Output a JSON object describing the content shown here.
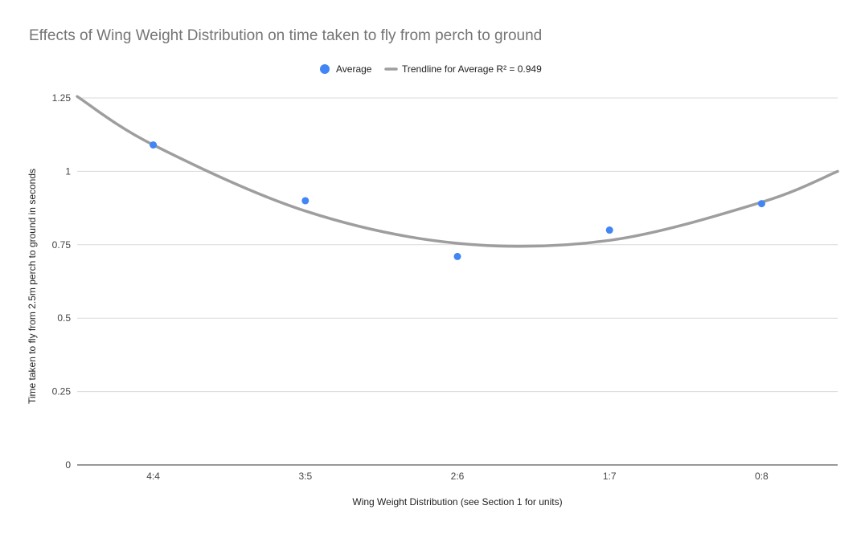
{
  "chart_data": {
    "type": "scatter",
    "title": "Effects of Wing Weight Distribution on time taken to fly from perch to ground",
    "xlabel": "Wing Weight Distribution (see Section 1 for units)",
    "ylabel": "Time taken to fly from 2.5m perch to ground in seconds",
    "categories": [
      "4:4",
      "3:5",
      "2:6",
      "1:7",
      "0:8"
    ],
    "ylim": [
      0,
      1.25
    ],
    "yticks": [
      "0",
      "0.25",
      "0.5",
      "0.75",
      "1",
      "1.25"
    ],
    "grid": true,
    "legend_position": "top",
    "series": [
      {
        "name": "Average",
        "values": [
          1.09,
          0.9,
          0.71,
          0.8,
          0.89
        ],
        "color": "#4285f4"
      }
    ],
    "trendline": {
      "name": "Trendline for Average R² = 0.949",
      "type": "polynomial",
      "points": [
        {
          "x": 0.5,
          "y": 1.255
        },
        {
          "x": 1,
          "y": 1.09
        },
        {
          "x": 2,
          "y": 0.865
        },
        {
          "x": 3,
          "y": 0.755
        },
        {
          "x": 4,
          "y": 0.765
        },
        {
          "x": 5,
          "y": 0.895
        },
        {
          "x": 5.5,
          "y": 1.0
        }
      ],
      "color": "#9e9e9e"
    }
  }
}
